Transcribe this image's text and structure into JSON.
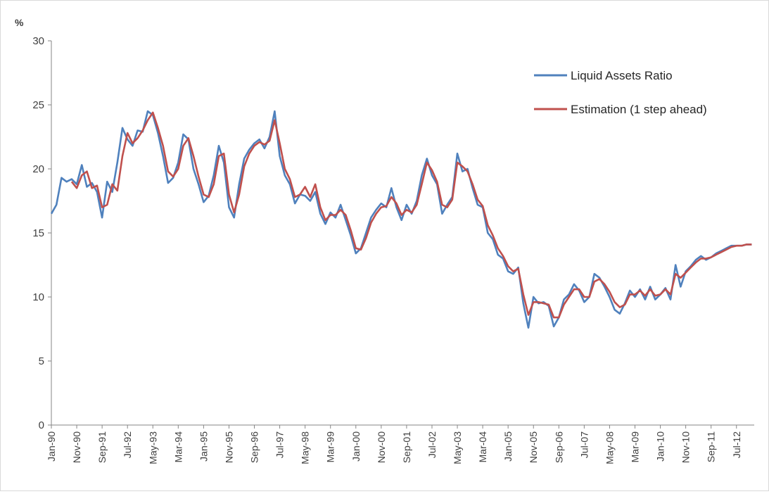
{
  "chart_data": {
    "type": "line",
    "title": "",
    "xlabel": "",
    "ylabel": "%",
    "ylim": [
      0,
      30
    ],
    "y_ticks": [
      "0",
      "5",
      "10",
      "15",
      "20",
      "25",
      "30"
    ],
    "x_tick_labels": [
      "Jan-90",
      "Nov-90",
      "Sep-91",
      "Jul-92",
      "May-93",
      "Mar-94",
      "Jan-95",
      "Nov-95",
      "Sep-96",
      "Jul-97",
      "May-98",
      "Mar-99",
      "Jan-00",
      "Nov-00",
      "Sep-01",
      "Jul-02",
      "May-03",
      "Mar-04",
      "Jan-05",
      "Nov-05",
      "Sep-06",
      "Jul-07",
      "May-08",
      "Mar-09",
      "Jan-10",
      "Nov-10",
      "Sep-11",
      "Jul-12"
    ],
    "x_start": "Jan-90",
    "x_end": "Feb-13",
    "grid": false,
    "legend_position": "top-right",
    "series": [
      {
        "name": "Liquid Assets Ratio",
        "color": "#4f81bd",
        "points": [
          [
            "Jan-90",
            16.5
          ],
          [
            "Mar-90",
            17.2
          ],
          [
            "May-90",
            19.3
          ],
          [
            "Jul-90",
            19.0
          ],
          [
            "Sep-90",
            19.2
          ],
          [
            "Nov-90",
            18.8
          ],
          [
            "Jan-91",
            20.3
          ],
          [
            "Mar-91",
            18.6
          ],
          [
            "May-91",
            18.9
          ],
          [
            "Jul-91",
            18.2
          ],
          [
            "Sep-91",
            16.2
          ],
          [
            "Nov-91",
            19.0
          ],
          [
            "Jan-92",
            18.2
          ],
          [
            "Mar-92",
            20.5
          ],
          [
            "May-92",
            23.2
          ],
          [
            "Jul-92",
            22.3
          ],
          [
            "Sep-92",
            21.8
          ],
          [
            "Nov-92",
            23.0
          ],
          [
            "Jan-93",
            22.9
          ],
          [
            "Mar-93",
            24.5
          ],
          [
            "May-93",
            24.2
          ],
          [
            "Jul-93",
            22.8
          ],
          [
            "Sep-93",
            21.0
          ],
          [
            "Nov-93",
            18.9
          ],
          [
            "Jan-94",
            19.3
          ],
          [
            "Mar-94",
            20.5
          ],
          [
            "May-94",
            22.7
          ],
          [
            "Jul-94",
            22.3
          ],
          [
            "Sep-94",
            20.0
          ],
          [
            "Nov-94",
            18.8
          ],
          [
            "Jan-95",
            17.4
          ],
          [
            "Mar-95",
            17.9
          ],
          [
            "May-95",
            19.5
          ],
          [
            "Jul-95",
            21.8
          ],
          [
            "Sep-95",
            20.5
          ],
          [
            "Nov-95",
            17.0
          ],
          [
            "Jan-96",
            16.2
          ],
          [
            "Mar-96",
            18.8
          ],
          [
            "May-96",
            20.8
          ],
          [
            "Jul-96",
            21.5
          ],
          [
            "Sep-96",
            22.0
          ],
          [
            "Nov-96",
            22.3
          ],
          [
            "Jan-97",
            21.6
          ],
          [
            "Mar-97",
            22.5
          ],
          [
            "May-97",
            24.5
          ],
          [
            "Jul-97",
            21.0
          ],
          [
            "Sep-97",
            19.5
          ],
          [
            "Nov-97",
            18.8
          ],
          [
            "Jan-98",
            17.3
          ],
          [
            "Mar-98",
            18.0
          ],
          [
            "May-98",
            17.9
          ],
          [
            "Jul-98",
            17.5
          ],
          [
            "Sep-98",
            18.2
          ],
          [
            "Nov-98",
            16.5
          ],
          [
            "Jan-99",
            15.7
          ],
          [
            "Mar-99",
            16.6
          ],
          [
            "May-99",
            16.2
          ],
          [
            "Jul-99",
            17.2
          ],
          [
            "Sep-99",
            16.0
          ],
          [
            "Nov-99",
            14.8
          ],
          [
            "Jan-00",
            13.4
          ],
          [
            "Mar-00",
            13.8
          ],
          [
            "May-00",
            15.0
          ],
          [
            "Jul-00",
            16.2
          ],
          [
            "Sep-00",
            16.8
          ],
          [
            "Nov-00",
            17.3
          ],
          [
            "Jan-01",
            17.0
          ],
          [
            "Mar-01",
            18.5
          ],
          [
            "May-01",
            17.0
          ],
          [
            "Jul-01",
            16.0
          ],
          [
            "Sep-01",
            17.2
          ],
          [
            "Nov-01",
            16.5
          ],
          [
            "Jan-02",
            17.5
          ],
          [
            "Mar-02",
            19.5
          ],
          [
            "May-02",
            20.8
          ],
          [
            "Jul-02",
            19.5
          ],
          [
            "Sep-02",
            18.8
          ],
          [
            "Nov-02",
            16.5
          ],
          [
            "Jan-03",
            17.2
          ],
          [
            "Mar-03",
            17.8
          ],
          [
            "May-03",
            21.2
          ],
          [
            "Jul-03",
            19.8
          ],
          [
            "Sep-03",
            20.0
          ],
          [
            "Nov-03",
            18.5
          ],
          [
            "Jan-04",
            17.2
          ],
          [
            "Mar-04",
            17.0
          ],
          [
            "May-04",
            15.0
          ],
          [
            "Jul-04",
            14.5
          ],
          [
            "Sep-04",
            13.3
          ],
          [
            "Nov-04",
            13.0
          ],
          [
            "Jan-05",
            12.0
          ],
          [
            "Mar-05",
            11.8
          ],
          [
            "May-05",
            12.3
          ],
          [
            "Jul-05",
            9.5
          ],
          [
            "Sep-05",
            7.6
          ],
          [
            "Nov-05",
            10.0
          ],
          [
            "Jan-06",
            9.5
          ],
          [
            "Mar-06",
            9.6
          ],
          [
            "May-06",
            9.3
          ],
          [
            "Jul-06",
            7.7
          ],
          [
            "Sep-06",
            8.4
          ],
          [
            "Nov-06",
            9.8
          ],
          [
            "Jan-07",
            10.2
          ],
          [
            "Mar-07",
            11.0
          ],
          [
            "May-07",
            10.5
          ],
          [
            "Jul-07",
            9.6
          ],
          [
            "Sep-07",
            10.0
          ],
          [
            "Nov-07",
            11.8
          ],
          [
            "Jan-08",
            11.5
          ],
          [
            "Mar-08",
            10.8
          ],
          [
            "May-08",
            10.0
          ],
          [
            "Jul-08",
            9.0
          ],
          [
            "Sep-08",
            8.7
          ],
          [
            "Nov-08",
            9.5
          ],
          [
            "Jan-09",
            10.5
          ],
          [
            "Mar-09",
            10.0
          ],
          [
            "May-09",
            10.6
          ],
          [
            "Jul-09",
            9.8
          ],
          [
            "Sep-09",
            10.8
          ],
          [
            "Nov-09",
            9.8
          ],
          [
            "Jan-10",
            10.2
          ],
          [
            "Mar-10",
            10.7
          ],
          [
            "May-10",
            9.8
          ],
          [
            "Jul-10",
            12.5
          ],
          [
            "Sep-10",
            10.8
          ],
          [
            "Nov-10",
            12.0
          ],
          [
            "Jan-11",
            12.4
          ],
          [
            "Mar-11",
            12.9
          ],
          [
            "May-11",
            13.2
          ],
          [
            "Jul-11",
            12.9
          ],
          [
            "Sep-11",
            13.1
          ],
          [
            "Nov-11",
            13.4
          ],
          [
            "Jan-12",
            13.6
          ],
          [
            "Mar-12",
            13.8
          ],
          [
            "May-12",
            14.0
          ],
          [
            "Jul-12",
            14.0
          ],
          [
            "Sep-12",
            14.0
          ],
          [
            "Nov-12",
            14.1
          ],
          [
            "Jan-13",
            14.1
          ]
        ]
      },
      {
        "name": "Estimation (1 step ahead)",
        "color": "#c0504d",
        "points": [
          [
            "Sep-90",
            19.0
          ],
          [
            "Nov-90",
            18.5
          ],
          [
            "Jan-91",
            19.5
          ],
          [
            "Mar-91",
            19.8
          ],
          [
            "May-91",
            18.5
          ],
          [
            "Jul-91",
            18.7
          ],
          [
            "Sep-91",
            17.0
          ],
          [
            "Nov-91",
            17.2
          ],
          [
            "Jan-92",
            18.8
          ],
          [
            "Mar-92",
            18.3
          ],
          [
            "May-92",
            21.0
          ],
          [
            "Jul-92",
            22.8
          ],
          [
            "Sep-92",
            22.0
          ],
          [
            "Nov-92",
            22.4
          ],
          [
            "Jan-93",
            23.0
          ],
          [
            "Mar-93",
            23.8
          ],
          [
            "May-93",
            24.4
          ],
          [
            "Jul-93",
            23.2
          ],
          [
            "Sep-93",
            21.8
          ],
          [
            "Nov-93",
            19.8
          ],
          [
            "Jan-94",
            19.4
          ],
          [
            "Mar-94",
            20.0
          ],
          [
            "May-94",
            21.8
          ],
          [
            "Jul-94",
            22.4
          ],
          [
            "Sep-94",
            21.0
          ],
          [
            "Nov-94",
            19.4
          ],
          [
            "Jan-95",
            18.0
          ],
          [
            "Mar-95",
            17.8
          ],
          [
            "May-95",
            18.8
          ],
          [
            "Jul-95",
            21.0
          ],
          [
            "Sep-95",
            21.2
          ],
          [
            "Nov-95",
            18.0
          ],
          [
            "Jan-96",
            16.6
          ],
          [
            "Mar-96",
            18.0
          ],
          [
            "May-96",
            20.2
          ],
          [
            "Jul-96",
            21.2
          ],
          [
            "Sep-96",
            21.8
          ],
          [
            "Nov-96",
            22.1
          ],
          [
            "Jan-97",
            21.9
          ],
          [
            "Mar-97",
            22.2
          ],
          [
            "May-97",
            23.8
          ],
          [
            "Jul-97",
            22.0
          ],
          [
            "Sep-97",
            20.0
          ],
          [
            "Nov-97",
            19.2
          ],
          [
            "Jan-98",
            17.8
          ],
          [
            "Mar-98",
            18.0
          ],
          [
            "May-98",
            18.6
          ],
          [
            "Jul-98",
            17.8
          ],
          [
            "Sep-98",
            18.8
          ],
          [
            "Nov-98",
            17.0
          ],
          [
            "Jan-99",
            16.0
          ],
          [
            "Mar-99",
            16.4
          ],
          [
            "May-99",
            16.4
          ],
          [
            "Jul-99",
            16.8
          ],
          [
            "Sep-99",
            16.4
          ],
          [
            "Nov-99",
            15.2
          ],
          [
            "Jan-00",
            13.8
          ],
          [
            "Mar-00",
            13.7
          ],
          [
            "May-00",
            14.6
          ],
          [
            "Jul-00",
            15.8
          ],
          [
            "Sep-00",
            16.5
          ],
          [
            "Nov-00",
            17.0
          ],
          [
            "Jan-01",
            17.1
          ],
          [
            "Mar-01",
            17.8
          ],
          [
            "May-01",
            17.3
          ],
          [
            "Jul-01",
            16.4
          ],
          [
            "Sep-01",
            16.8
          ],
          [
            "Nov-01",
            16.6
          ],
          [
            "Jan-02",
            17.2
          ],
          [
            "Mar-02",
            18.8
          ],
          [
            "May-02",
            20.5
          ],
          [
            "Jul-02",
            19.9
          ],
          [
            "Sep-02",
            19.0
          ],
          [
            "Nov-02",
            17.2
          ],
          [
            "Jan-03",
            17.0
          ],
          [
            "Mar-03",
            17.6
          ],
          [
            "May-03",
            20.5
          ],
          [
            "Jul-03",
            20.2
          ],
          [
            "Sep-03",
            19.8
          ],
          [
            "Nov-03",
            18.8
          ],
          [
            "Jan-04",
            17.6
          ],
          [
            "Mar-04",
            17.1
          ],
          [
            "May-04",
            15.6
          ],
          [
            "Jul-04",
            14.8
          ],
          [
            "Sep-04",
            13.8
          ],
          [
            "Nov-04",
            13.2
          ],
          [
            "Jan-05",
            12.4
          ],
          [
            "Mar-05",
            12.0
          ],
          [
            "May-05",
            12.2
          ],
          [
            "Jul-05",
            10.2
          ],
          [
            "Sep-05",
            8.6
          ],
          [
            "Nov-05",
            9.6
          ],
          [
            "Jan-06",
            9.6
          ],
          [
            "Mar-06",
            9.5
          ],
          [
            "May-06",
            9.4
          ],
          [
            "Jul-06",
            8.4
          ],
          [
            "Sep-06",
            8.4
          ],
          [
            "Nov-06",
            9.4
          ],
          [
            "Jan-07",
            10.0
          ],
          [
            "Mar-07",
            10.6
          ],
          [
            "May-07",
            10.6
          ],
          [
            "Jul-07",
            10.0
          ],
          [
            "Sep-07",
            10.0
          ],
          [
            "Nov-07",
            11.2
          ],
          [
            "Jan-08",
            11.4
          ],
          [
            "Mar-08",
            11.0
          ],
          [
            "May-08",
            10.4
          ],
          [
            "Jul-08",
            9.6
          ],
          [
            "Sep-08",
            9.2
          ],
          [
            "Nov-08",
            9.4
          ],
          [
            "Jan-09",
            10.2
          ],
          [
            "Mar-09",
            10.2
          ],
          [
            "May-09",
            10.5
          ],
          [
            "Jul-09",
            10.1
          ],
          [
            "Sep-09",
            10.6
          ],
          [
            "Nov-09",
            10.1
          ],
          [
            "Jan-10",
            10.2
          ],
          [
            "Mar-10",
            10.6
          ],
          [
            "May-10",
            10.2
          ],
          [
            "Jul-10",
            11.8
          ],
          [
            "Sep-10",
            11.5
          ],
          [
            "Nov-10",
            11.9
          ],
          [
            "Jan-11",
            12.3
          ],
          [
            "Mar-11",
            12.7
          ],
          [
            "May-11",
            13.0
          ],
          [
            "Jul-11",
            13.0
          ],
          [
            "Sep-11",
            13.1
          ],
          [
            "Nov-11",
            13.3
          ],
          [
            "Jan-12",
            13.5
          ],
          [
            "Mar-12",
            13.7
          ],
          [
            "May-12",
            13.9
          ],
          [
            "Jul-12",
            14.0
          ],
          [
            "Sep-12",
            14.0
          ],
          [
            "Nov-12",
            14.1
          ],
          [
            "Jan-13",
            14.1
          ]
        ]
      }
    ]
  }
}
